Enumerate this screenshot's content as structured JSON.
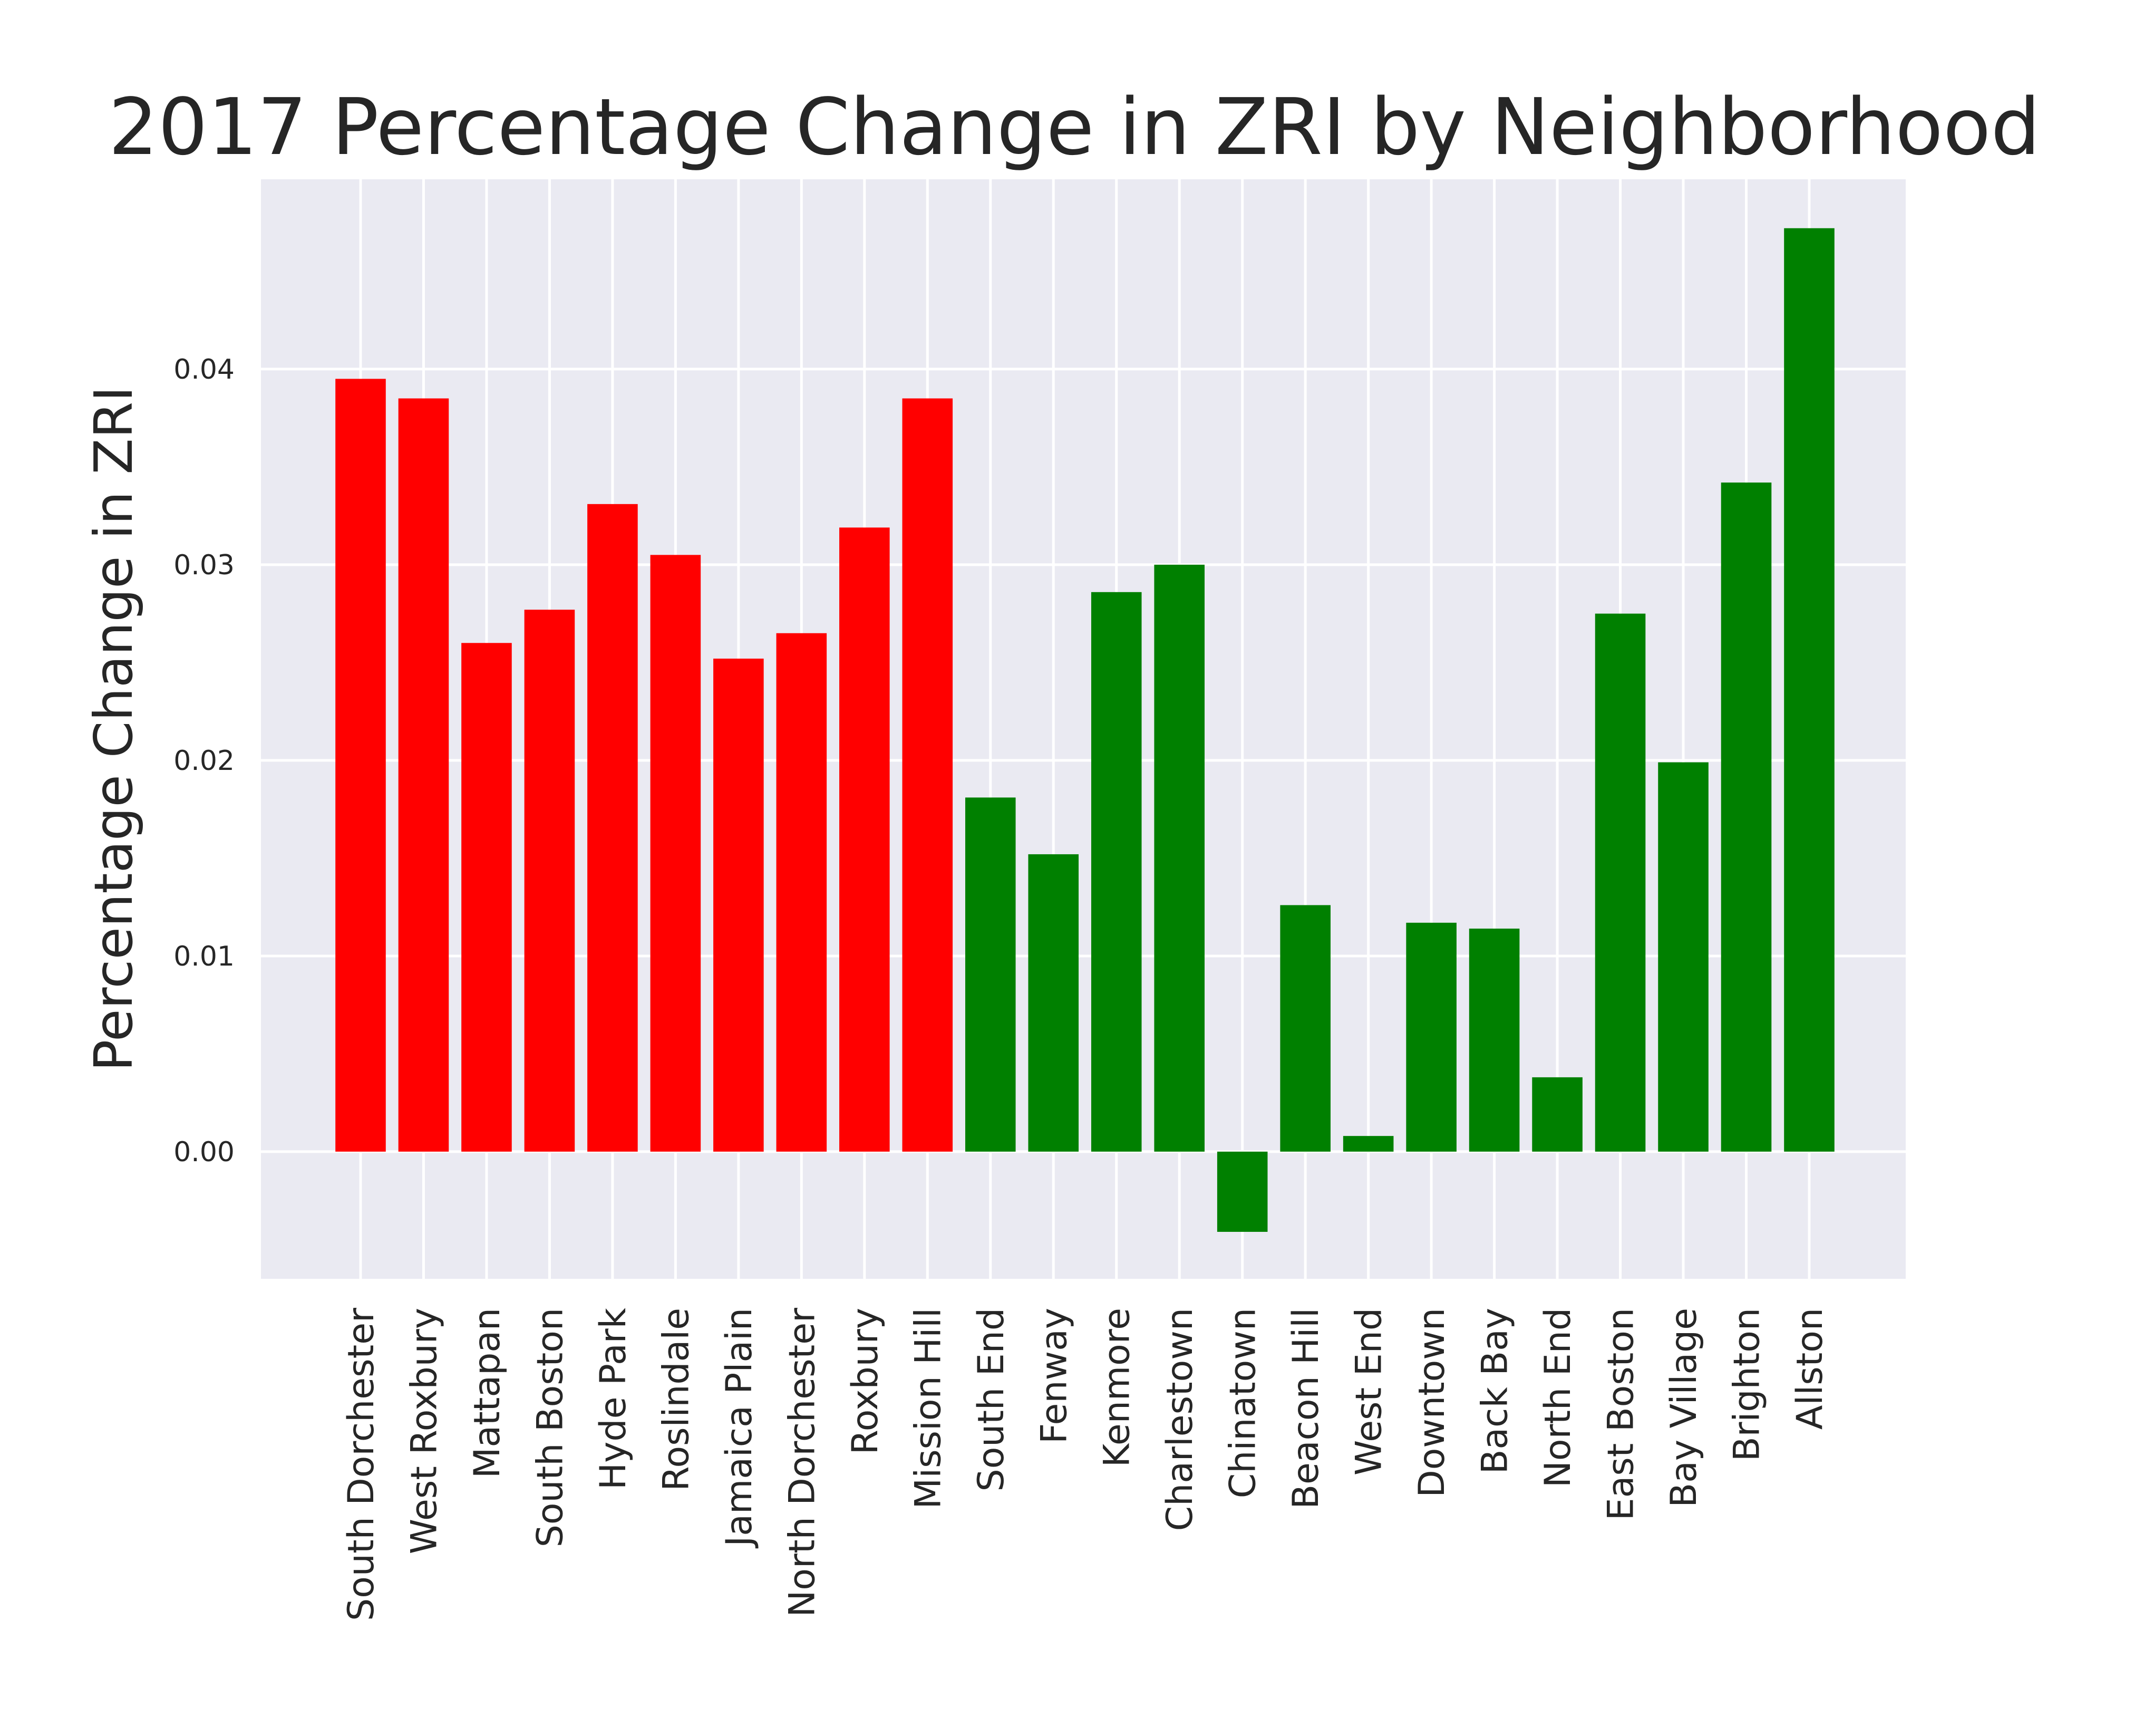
{
  "chart_data": {
    "type": "bar",
    "title": "2017 Percentage Change in ZRI by Neighborhood",
    "xlabel": "",
    "ylabel": "Percentage Change in ZRI",
    "ylim": [
      -0.0065,
      0.0497
    ],
    "yticks": [
      "0.00",
      "0.01",
      "0.02",
      "0.03",
      "0.04"
    ],
    "ytick_values": [
      0.0,
      0.01,
      0.02,
      0.03,
      0.04
    ],
    "grid": true,
    "background": "#eaeaf2",
    "categories": [
      "South Dorchester",
      "West Roxbury",
      "Mattapan",
      "South Boston",
      "Hyde Park",
      "Roslindale",
      "Jamaica Plain",
      "North Dorchester",
      "Roxbury",
      "Mission Hill",
      "South End",
      "Fenway",
      "Kenmore",
      "Charlestown",
      "Chinatown",
      "Beacon Hill",
      "West End",
      "Downtown",
      "Back Bay",
      "North End",
      "East Boston",
      "Bay Village",
      "Brighton",
      "Allston"
    ],
    "values": [
      0.0395,
      0.0385,
      0.026,
      0.0277,
      0.0331,
      0.0305,
      0.0252,
      0.0265,
      0.0319,
      0.0385,
      0.0181,
      0.0152,
      0.0286,
      0.03,
      -0.0041,
      0.0126,
      0.0008,
      0.0117,
      0.0114,
      0.0038,
      0.0275,
      0.0199,
      0.0342,
      0.0472
    ],
    "colors": [
      "#ff0000",
      "#ff0000",
      "#ff0000",
      "#ff0000",
      "#ff0000",
      "#ff0000",
      "#ff0000",
      "#ff0000",
      "#ff0000",
      "#ff0000",
      "#008000",
      "#008000",
      "#008000",
      "#008000",
      "#008000",
      "#008000",
      "#008000",
      "#008000",
      "#008000",
      "#008000",
      "#008000",
      "#008000",
      "#008000",
      "#008000"
    ]
  }
}
